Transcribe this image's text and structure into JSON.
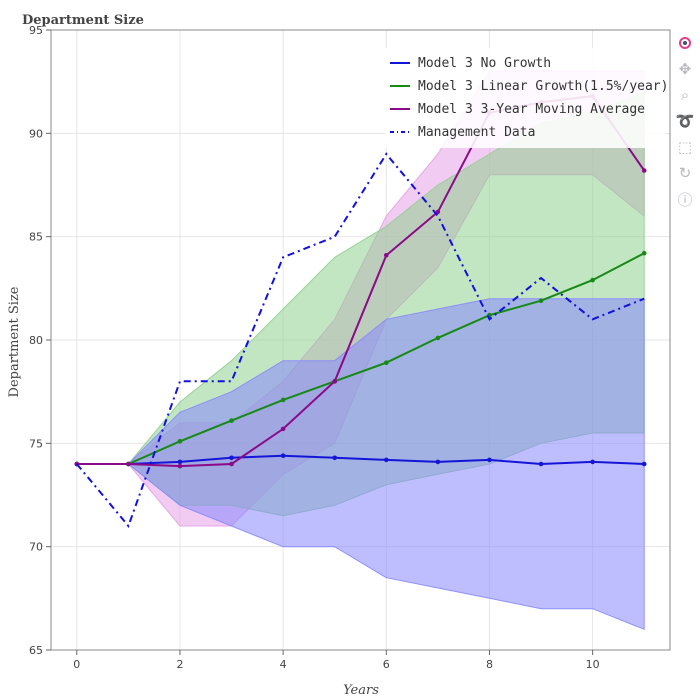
{
  "chart_data": {
    "type": "line",
    "title": "Department Size",
    "xlabel": "Years",
    "ylabel": "Department Size",
    "xlim": [
      -0.5,
      11.5
    ],
    "ylim": [
      65,
      95
    ],
    "xticks": [
      0,
      2,
      4,
      6,
      8,
      10
    ],
    "yticks": [
      65,
      70,
      75,
      80,
      85,
      90,
      95
    ],
    "grid": true,
    "legend_position": "top-right",
    "x": [
      0,
      1,
      2,
      3,
      4,
      5,
      6,
      7,
      8,
      9,
      10,
      11
    ],
    "bands": [
      {
        "band_of": "Model 3 3-Year Moving Average",
        "color": "#e6a0e6",
        "low": [
          74,
          74,
          71,
          71,
          73.5,
          75,
          81,
          83.5,
          88,
          88,
          88,
          86
        ],
        "high": [
          74,
          74,
          76,
          76,
          78,
          81,
          86,
          89,
          93,
          93,
          93,
          93
        ]
      },
      {
        "band_of": "Model 3 Linear Growth(1.5%/year)",
        "color": "#90d090",
        "low": [
          74,
          74,
          72,
          72,
          71.5,
          72,
          73,
          73.5,
          74,
          75,
          75.5,
          75.5
        ],
        "high": [
          74,
          74,
          77,
          79,
          81.5,
          84,
          85.5,
          87.5,
          89,
          90.5,
          91,
          92
        ]
      },
      {
        "band_of": "Model 3 No Growth",
        "color": "#8888ff",
        "low": [
          74,
          74,
          72,
          71,
          70,
          70,
          68.5,
          68,
          67.5,
          67,
          67,
          66
        ],
        "high": [
          74,
          74,
          76.5,
          77.5,
          79,
          79,
          81,
          81.5,
          82,
          82,
          82,
          82
        ]
      }
    ],
    "series": [
      {
        "name": "Model 3 No Growth",
        "color": "#1515d8",
        "style": "solid",
        "values": [
          74,
          74,
          74.1,
          74.3,
          74.4,
          74.3,
          74.2,
          74.1,
          74.2,
          74.0,
          74.1,
          74.0
        ]
      },
      {
        "name": "Model 3 Linear Growth(1.5%/year)",
        "color": "#158a15",
        "style": "solid",
        "values": [
          74,
          74,
          75.1,
          76.1,
          77.1,
          78.0,
          78.9,
          80.1,
          81.2,
          81.9,
          82.9,
          84.2
        ]
      },
      {
        "name": "Model 3 3-Year Moving Average",
        "color": "#8a0a8a",
        "style": "solid",
        "values": [
          74,
          74,
          73.9,
          74.0,
          75.7,
          78.0,
          84.1,
          86.2,
          91.0,
          91.5,
          91.8,
          88.2
        ]
      },
      {
        "name": "Management Data",
        "color": "#1010e0",
        "style": "dashdot",
        "values": [
          74,
          71,
          78,
          78,
          84,
          85,
          89,
          86,
          81,
          83,
          81,
          82
        ]
      }
    ]
  },
  "modebar": {
    "icons": [
      "plotly-logo-icon",
      "pan-icon",
      "zoom-icon",
      "lasso-icon",
      "select-icon",
      "reset-icon",
      "help-icon"
    ]
  }
}
